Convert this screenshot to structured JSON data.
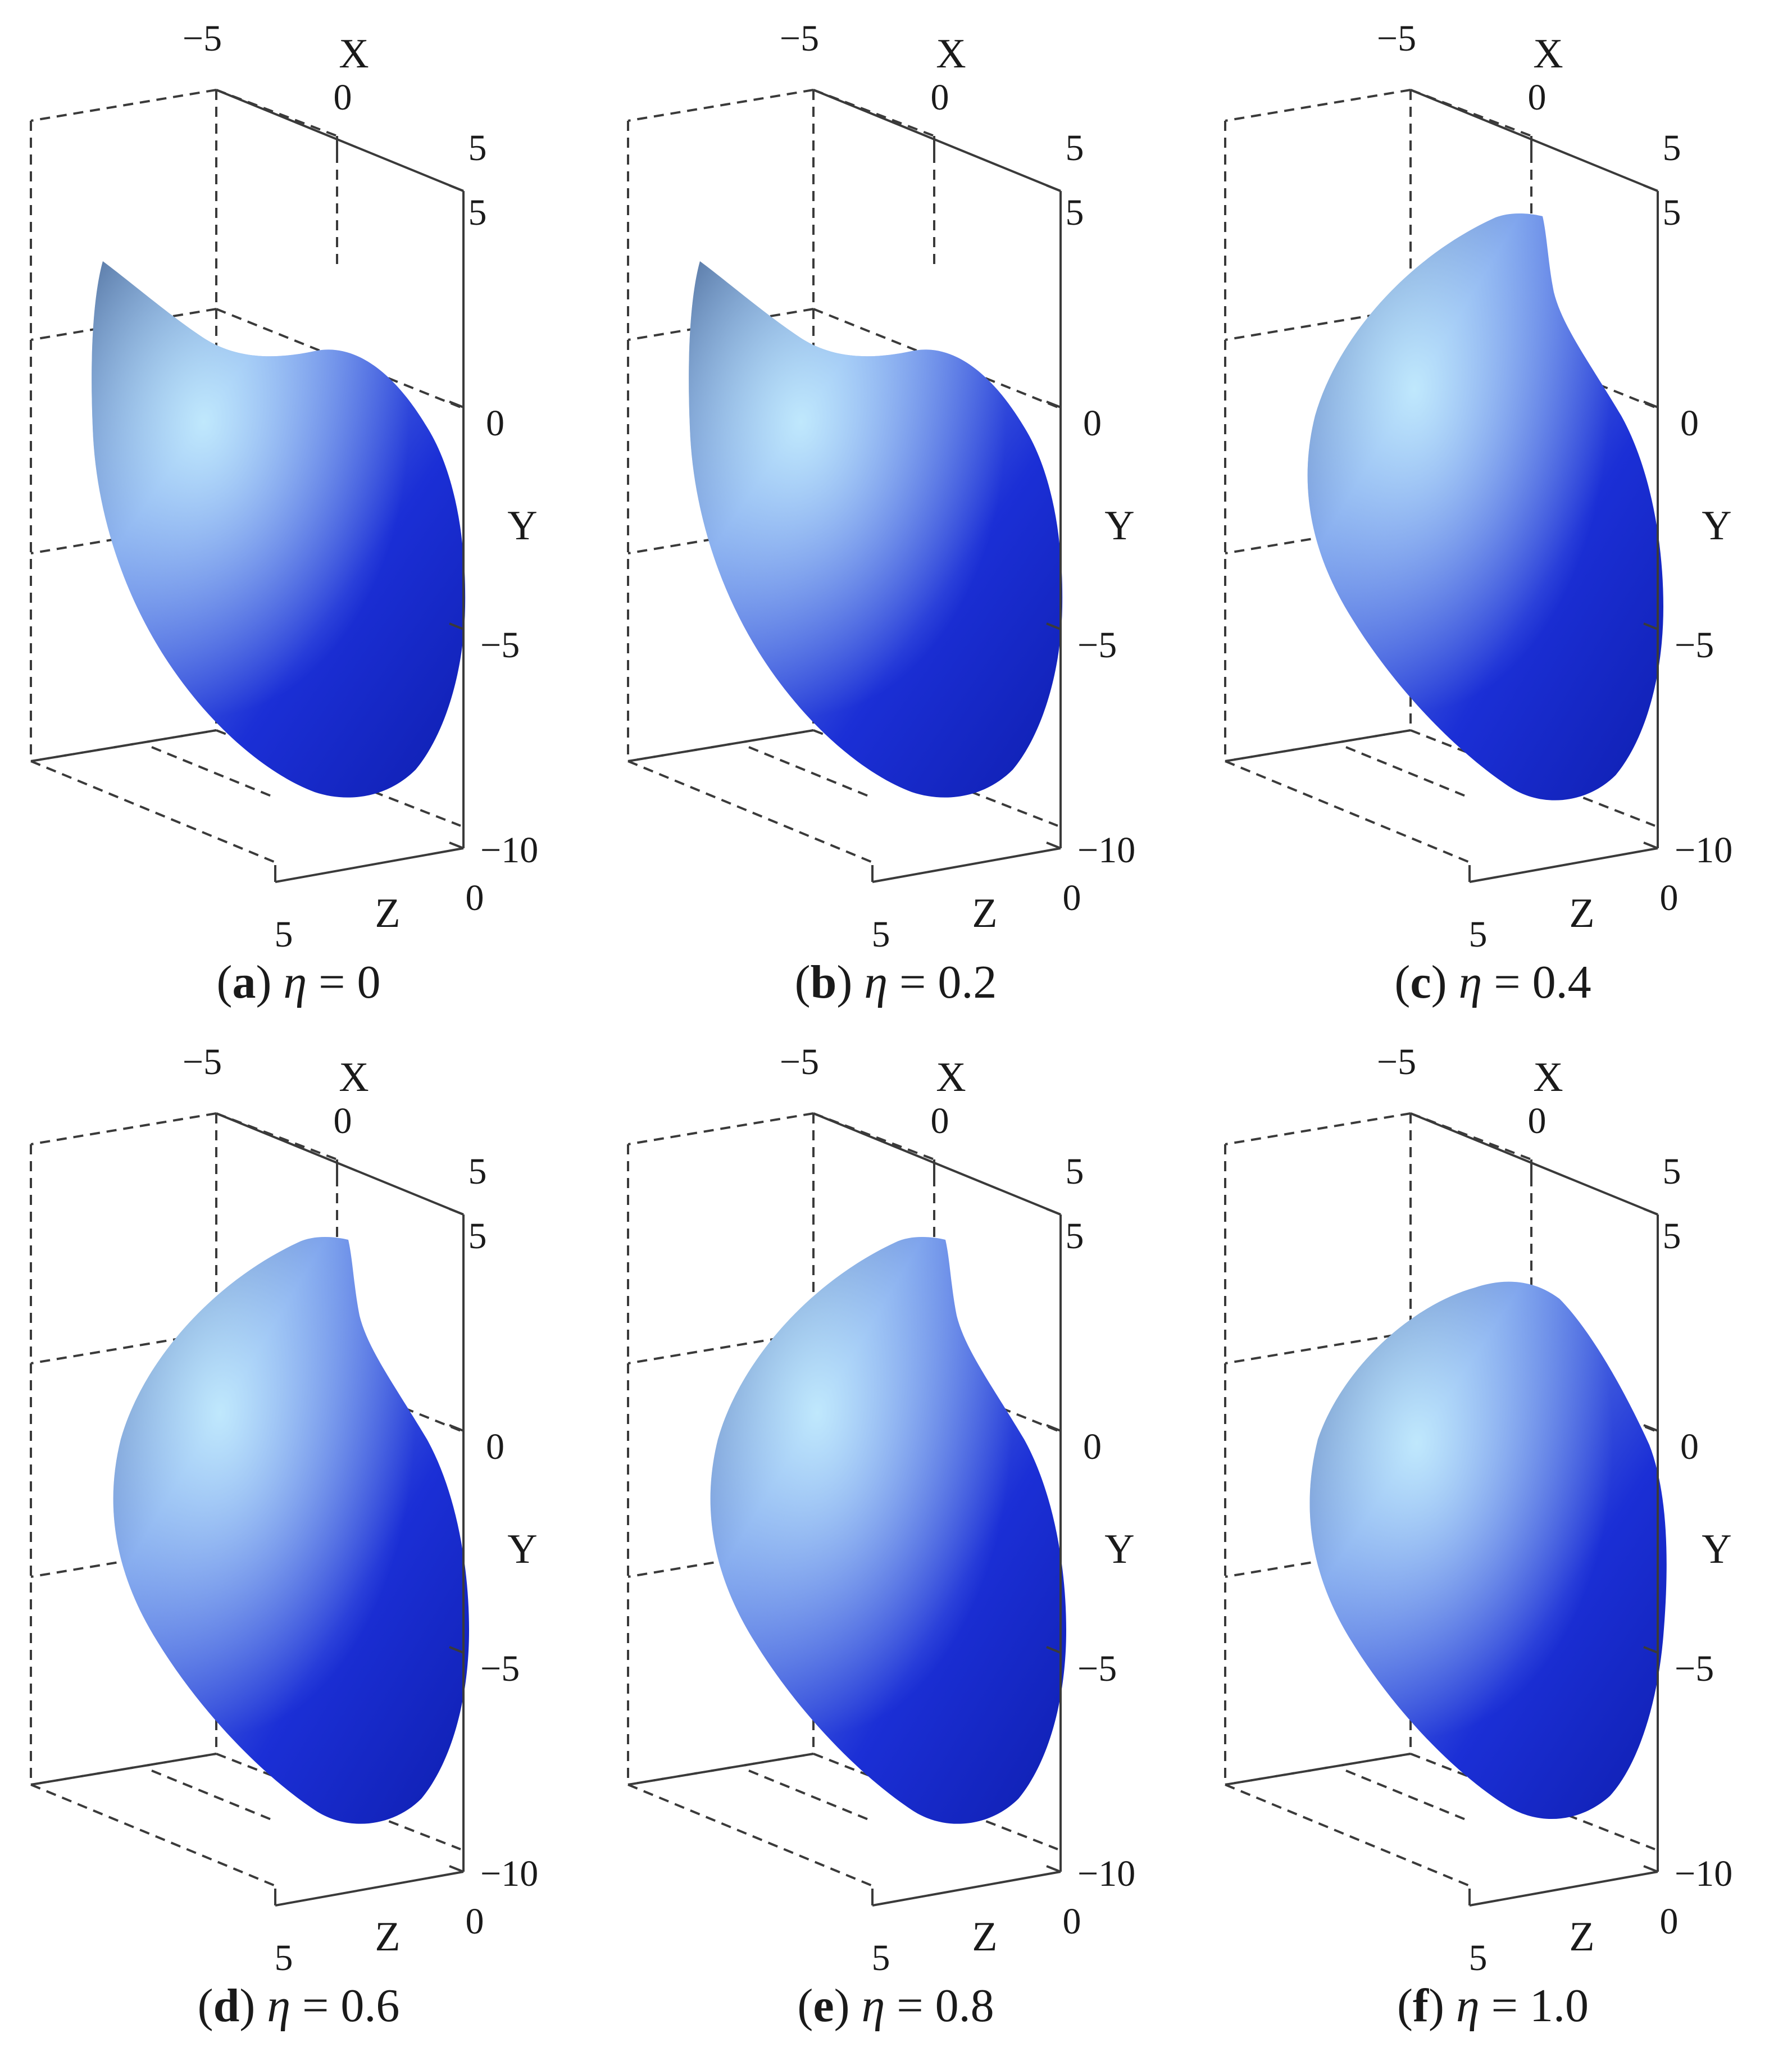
{
  "figure": {
    "axes": {
      "x_label": "X",
      "y_label": "Y",
      "z_label": "Z",
      "x_ticks": [
        "−5",
        "0",
        "5"
      ],
      "y_ticks": [
        "5",
        "0",
        "−5",
        "−10"
      ],
      "z_ticks": [
        "5",
        "0"
      ]
    },
    "colors": {
      "surface_light": "#c9f2ff",
      "surface_mid": "#6a8ee8",
      "surface_dark": "#1b2fd6",
      "surface_shadow": "#3c5a8f",
      "axis": "#3a3a3a"
    },
    "panels": [
      {
        "letter": "a",
        "symbol": "η",
        "value": "= 0",
        "shape": "cusp"
      },
      {
        "letter": "b",
        "symbol": "η",
        "value": "= 0.2",
        "shape": "cusp"
      },
      {
        "letter": "c",
        "symbol": "η",
        "value": "= 0.4",
        "shape": "hook"
      },
      {
        "letter": "d",
        "symbol": "η",
        "value": "= 0.6",
        "shape": "hook"
      },
      {
        "letter": "e",
        "symbol": "η",
        "value": "= 0.8",
        "shape": "hook"
      },
      {
        "letter": "f",
        "symbol": "η",
        "value": "= 1.0",
        "shape": "round"
      }
    ]
  }
}
